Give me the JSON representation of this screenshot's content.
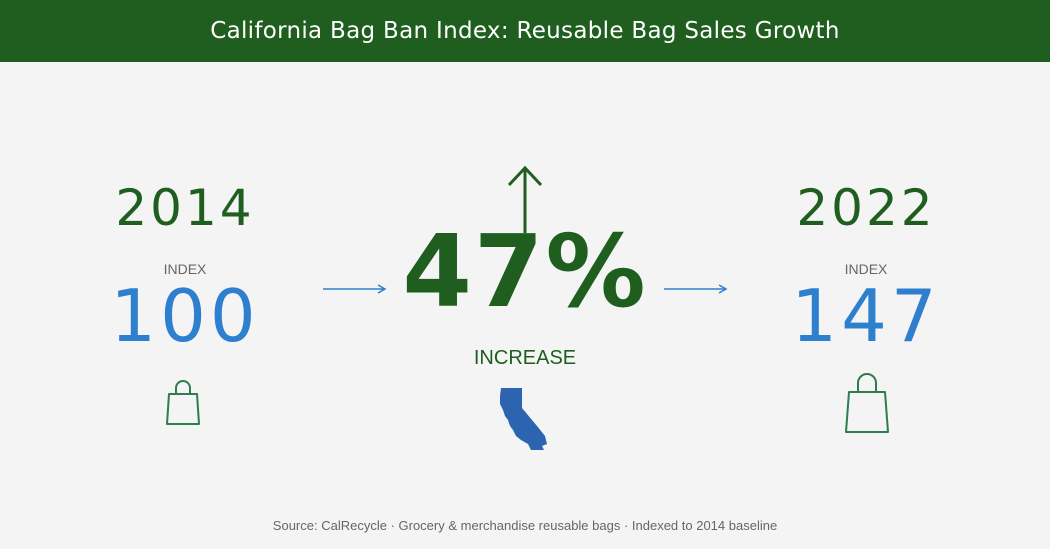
{
  "header": {
    "title": "California Bag Ban Index: Reusable Bag Sales Growth"
  },
  "start": {
    "year": "2014",
    "label": "INDEX",
    "value": "100"
  },
  "end": {
    "year": "2022",
    "label": "INDEX",
    "value": "147"
  },
  "change": {
    "value": "47%",
    "label": "INCREASE"
  },
  "source": "Source: CalRecycle · Grocery & merchandise reusable bags · Indexed to 2014 baseline",
  "icons": {
    "start_bag": "shopping-bag-icon",
    "end_bag": "shopping-bag-icon",
    "up": "arrow-up-icon",
    "flow": "arrow-right-icon",
    "state": "california-map-icon"
  },
  "colors": {
    "header_bg": "#1f5e1f",
    "primary_green": "#1f5e1f",
    "index_blue": "#2f7fcf",
    "state_blue": "#2c64b0",
    "background": "#f4f4f4"
  }
}
